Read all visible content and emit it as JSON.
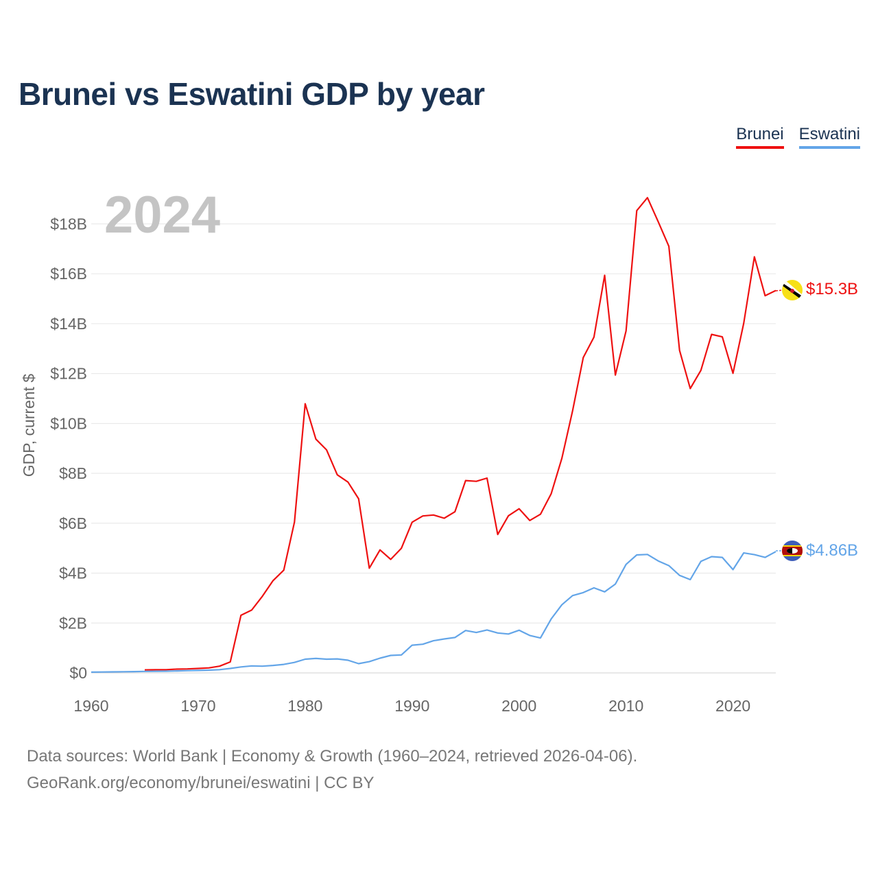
{
  "colors": {
    "brunei": "#ee1111",
    "eswatini": "#63a5e8",
    "title": "#1b3352",
    "grid": "#e6e6e6",
    "axis_text": "#666666",
    "year_watermark": "#c4c4c4"
  },
  "chart_data": {
    "type": "line",
    "title": "Brunei vs Eswatini GDP by year",
    "ylabel": "GDP, current $",
    "xlabel": "",
    "xlim": [
      1960,
      2024
    ],
    "ylim": [
      0,
      19000000000
    ],
    "x_ticks": [
      1960,
      1970,
      1980,
      1990,
      2000,
      2010,
      2020
    ],
    "x_tick_labels": [
      "1960",
      "1970",
      "1980",
      "1990",
      "2000",
      "2010",
      "2020"
    ],
    "y_ticks": [
      0,
      2000000000,
      4000000000,
      6000000000,
      8000000000,
      10000000000,
      12000000000,
      14000000000,
      16000000000,
      18000000000
    ],
    "y_tick_labels": [
      "$0",
      "$2B",
      "$4B",
      "$6B",
      "$8B",
      "$10B",
      "$12B",
      "$14B",
      "$16B",
      "$18B"
    ],
    "year_watermark": "2024",
    "legend_position": "top-right",
    "series": [
      {
        "name": "Brunei",
        "key": "brunei",
        "end_label": "$15.3B",
        "flag_icon": "brunei-flag-icon",
        "x": [
          1965,
          1966,
          1967,
          1968,
          1969,
          1970,
          1971,
          1972,
          1973,
          1974,
          1975,
          1976,
          1977,
          1978,
          1979,
          1980,
          1981,
          1982,
          1983,
          1984,
          1985,
          1986,
          1987,
          1988,
          1989,
          1990,
          1991,
          1992,
          1993,
          1994,
          1995,
          1996,
          1997,
          1998,
          1999,
          2000,
          2001,
          2002,
          2003,
          2004,
          2005,
          2006,
          2007,
          2008,
          2009,
          2010,
          2011,
          2012,
          2013,
          2014,
          2015,
          2016,
          2017,
          2018,
          2019,
          2020,
          2021,
          2022,
          2023,
          2024
        ],
        "values": [
          120000000,
          130000000,
          130000000,
          150000000,
          160000000,
          180000000,
          200000000,
          270000000,
          440000000,
          2310000000,
          2520000000,
          3070000000,
          3700000000,
          4120000000,
          6050000000,
          10790000000,
          9370000000,
          8940000000,
          7940000000,
          7650000000,
          6980000000,
          4200000000,
          4930000000,
          4550000000,
          5000000000,
          6040000000,
          6290000000,
          6330000000,
          6200000000,
          6460000000,
          7710000000,
          7680000000,
          7810000000,
          5550000000,
          6300000000,
          6580000000,
          6110000000,
          6360000000,
          7180000000,
          8600000000,
          10500000000,
          12640000000,
          13460000000,
          15940000000,
          11940000000,
          13710000000,
          18530000000,
          19050000000,
          18090000000,
          17100000000,
          12930000000,
          11400000000,
          12130000000,
          13570000000,
          13470000000,
          12010000000,
          14010000000,
          16680000000,
          15120000000,
          15330000000
        ]
      },
      {
        "name": "Eswatini",
        "key": "eswatini",
        "end_label": "$4.86B",
        "flag_icon": "eswatini-flag-icon",
        "x": [
          1960,
          1961,
          1962,
          1963,
          1964,
          1965,
          1966,
          1967,
          1968,
          1969,
          1970,
          1971,
          1972,
          1973,
          1974,
          1975,
          1976,
          1977,
          1978,
          1979,
          1980,
          1981,
          1982,
          1983,
          1984,
          1985,
          1986,
          1987,
          1988,
          1989,
          1990,
          1991,
          1992,
          1993,
          1994,
          1995,
          1996,
          1997,
          1998,
          1999,
          2000,
          2001,
          2002,
          2003,
          2004,
          2005,
          2006,
          2007,
          2008,
          2009,
          2010,
          2011,
          2012,
          2013,
          2014,
          2015,
          2016,
          2017,
          2018,
          2019,
          2020,
          2021,
          2022,
          2023,
          2024
        ],
        "values": [
          30000000,
          36000000,
          41000000,
          47000000,
          53000000,
          60000000,
          65000000,
          70000000,
          80000000,
          90000000,
          100000000,
          110000000,
          130000000,
          180000000,
          240000000,
          280000000,
          270000000,
          300000000,
          340000000,
          420000000,
          550000000,
          580000000,
          550000000,
          560000000,
          510000000,
          370000000,
          450000000,
          590000000,
          700000000,
          720000000,
          1110000000,
          1150000000,
          1290000000,
          1360000000,
          1420000000,
          1700000000,
          1620000000,
          1720000000,
          1600000000,
          1560000000,
          1710000000,
          1500000000,
          1400000000,
          2160000000,
          2730000000,
          3100000000,
          3220000000,
          3410000000,
          3250000000,
          3560000000,
          4350000000,
          4730000000,
          4750000000,
          4490000000,
          4300000000,
          3910000000,
          3740000000,
          4470000000,
          4660000000,
          4630000000,
          4140000000,
          4810000000,
          4740000000,
          4630000000,
          4860000000
        ]
      }
    ]
  },
  "legend": {
    "brunei_label": "Brunei",
    "eswatini_label": "Eswatini"
  },
  "footer": {
    "line1": "Data sources: World Bank | Economy & Growth (1960–2024, retrieved 2026-04-06).",
    "line2": "GeoRank.org/economy/brunei/eswatini | CC BY"
  }
}
